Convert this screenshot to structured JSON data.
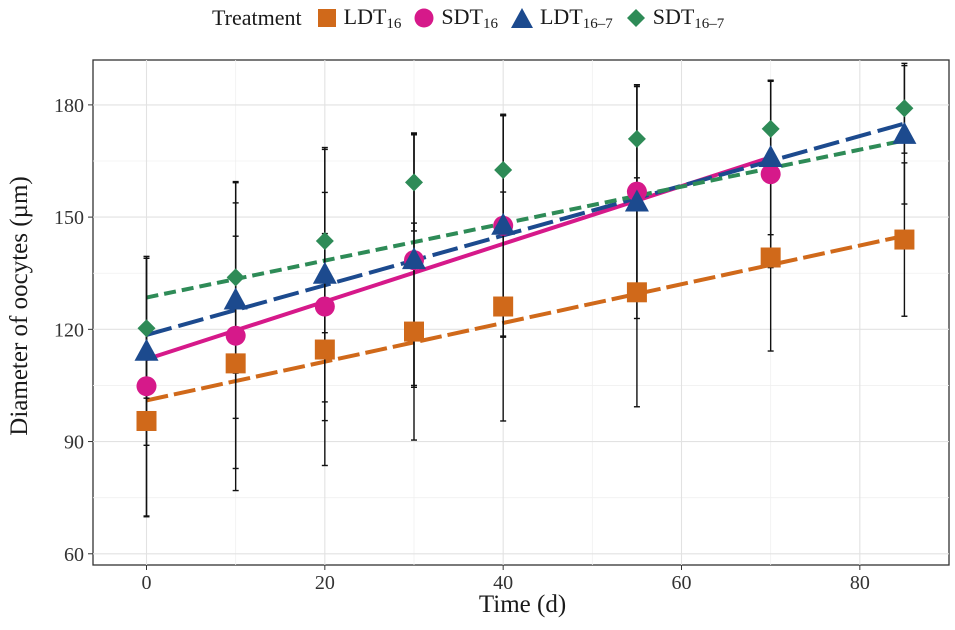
{
  "chart_data": {
    "type": "scatter",
    "xlabel": "Time (d)",
    "ylabel": "Diameter of oocytes (µm)",
    "xlim": [
      -6,
      90
    ],
    "ylim": [
      57,
      192
    ],
    "xticks": [
      0,
      20,
      40,
      60,
      80
    ],
    "yticks": [
      60,
      90,
      120,
      150,
      180
    ],
    "grid": true,
    "legend": {
      "title": "Treatment",
      "position": "top"
    },
    "series": [
      {
        "name": "LDT",
        "sub": "16",
        "color": "#d0691a",
        "marker": "square",
        "dash": "22,6",
        "x": [
          0,
          10,
          20,
          30,
          40,
          55,
          70,
          85
        ],
        "y": [
          95.5,
          110.9,
          114.6,
          119.4,
          126.1,
          129.9,
          139.2,
          144.0
        ],
        "err": [
          25.6,
          34.0,
          31.0,
          29.0,
          30.6,
          30.6,
          25.0,
          20.5
        ],
        "fit": [
          [
            0,
            101
          ],
          [
            85,
            145
          ]
        ]
      },
      {
        "name": "SDT",
        "sub": "16",
        "color": "#d6198a",
        "marker": "circle",
        "dash": "",
        "x": [
          0,
          10,
          20,
          30,
          40,
          55,
          70
        ],
        "y": [
          104.8,
          118.3,
          126.1,
          138.5,
          147.7,
          156.8,
          161.5
        ],
        "err": [
          34.7,
          35.5,
          30.5,
          33.5,
          29.5,
          28.5,
          25.0
        ],
        "fit": [
          [
            0,
            112
          ],
          [
            70,
            166
          ]
        ]
      },
      {
        "name": "LDT",
        "sub": "16–7",
        "color": "#1c4a8e",
        "marker": "triangle",
        "dash": "26,7",
        "x": [
          0,
          10,
          20,
          30,
          40,
          55,
          70,
          85
        ],
        "y": [
          114.0,
          127.7,
          134.6,
          138.5,
          147.7,
          153.9,
          165.8,
          172.0
        ],
        "err": [
          25.0,
          31.5,
          34.0,
          34.0,
          29.8,
          31.0,
          20.5,
          18.5
        ],
        "fit": [
          [
            0,
            118.5
          ],
          [
            85,
            175
          ]
        ]
      },
      {
        "name": "SDT",
        "sub": "16–7",
        "color": "#2e8b57",
        "marker": "diamond",
        "dash": "12,6",
        "x": [
          0,
          10,
          20,
          30,
          40,
          55,
          70,
          85
        ],
        "y": [
          120.3,
          133.9,
          143.6,
          159.3,
          162.6,
          170.9,
          173.6,
          179.1
        ],
        "err": [
          18.7,
          25.6,
          24.5,
          13.0,
          14.5,
          14.5,
          13.0,
          12.0
        ],
        "fit": [
          [
            0,
            128.5
          ],
          [
            85,
            170.5
          ]
        ]
      }
    ]
  }
}
